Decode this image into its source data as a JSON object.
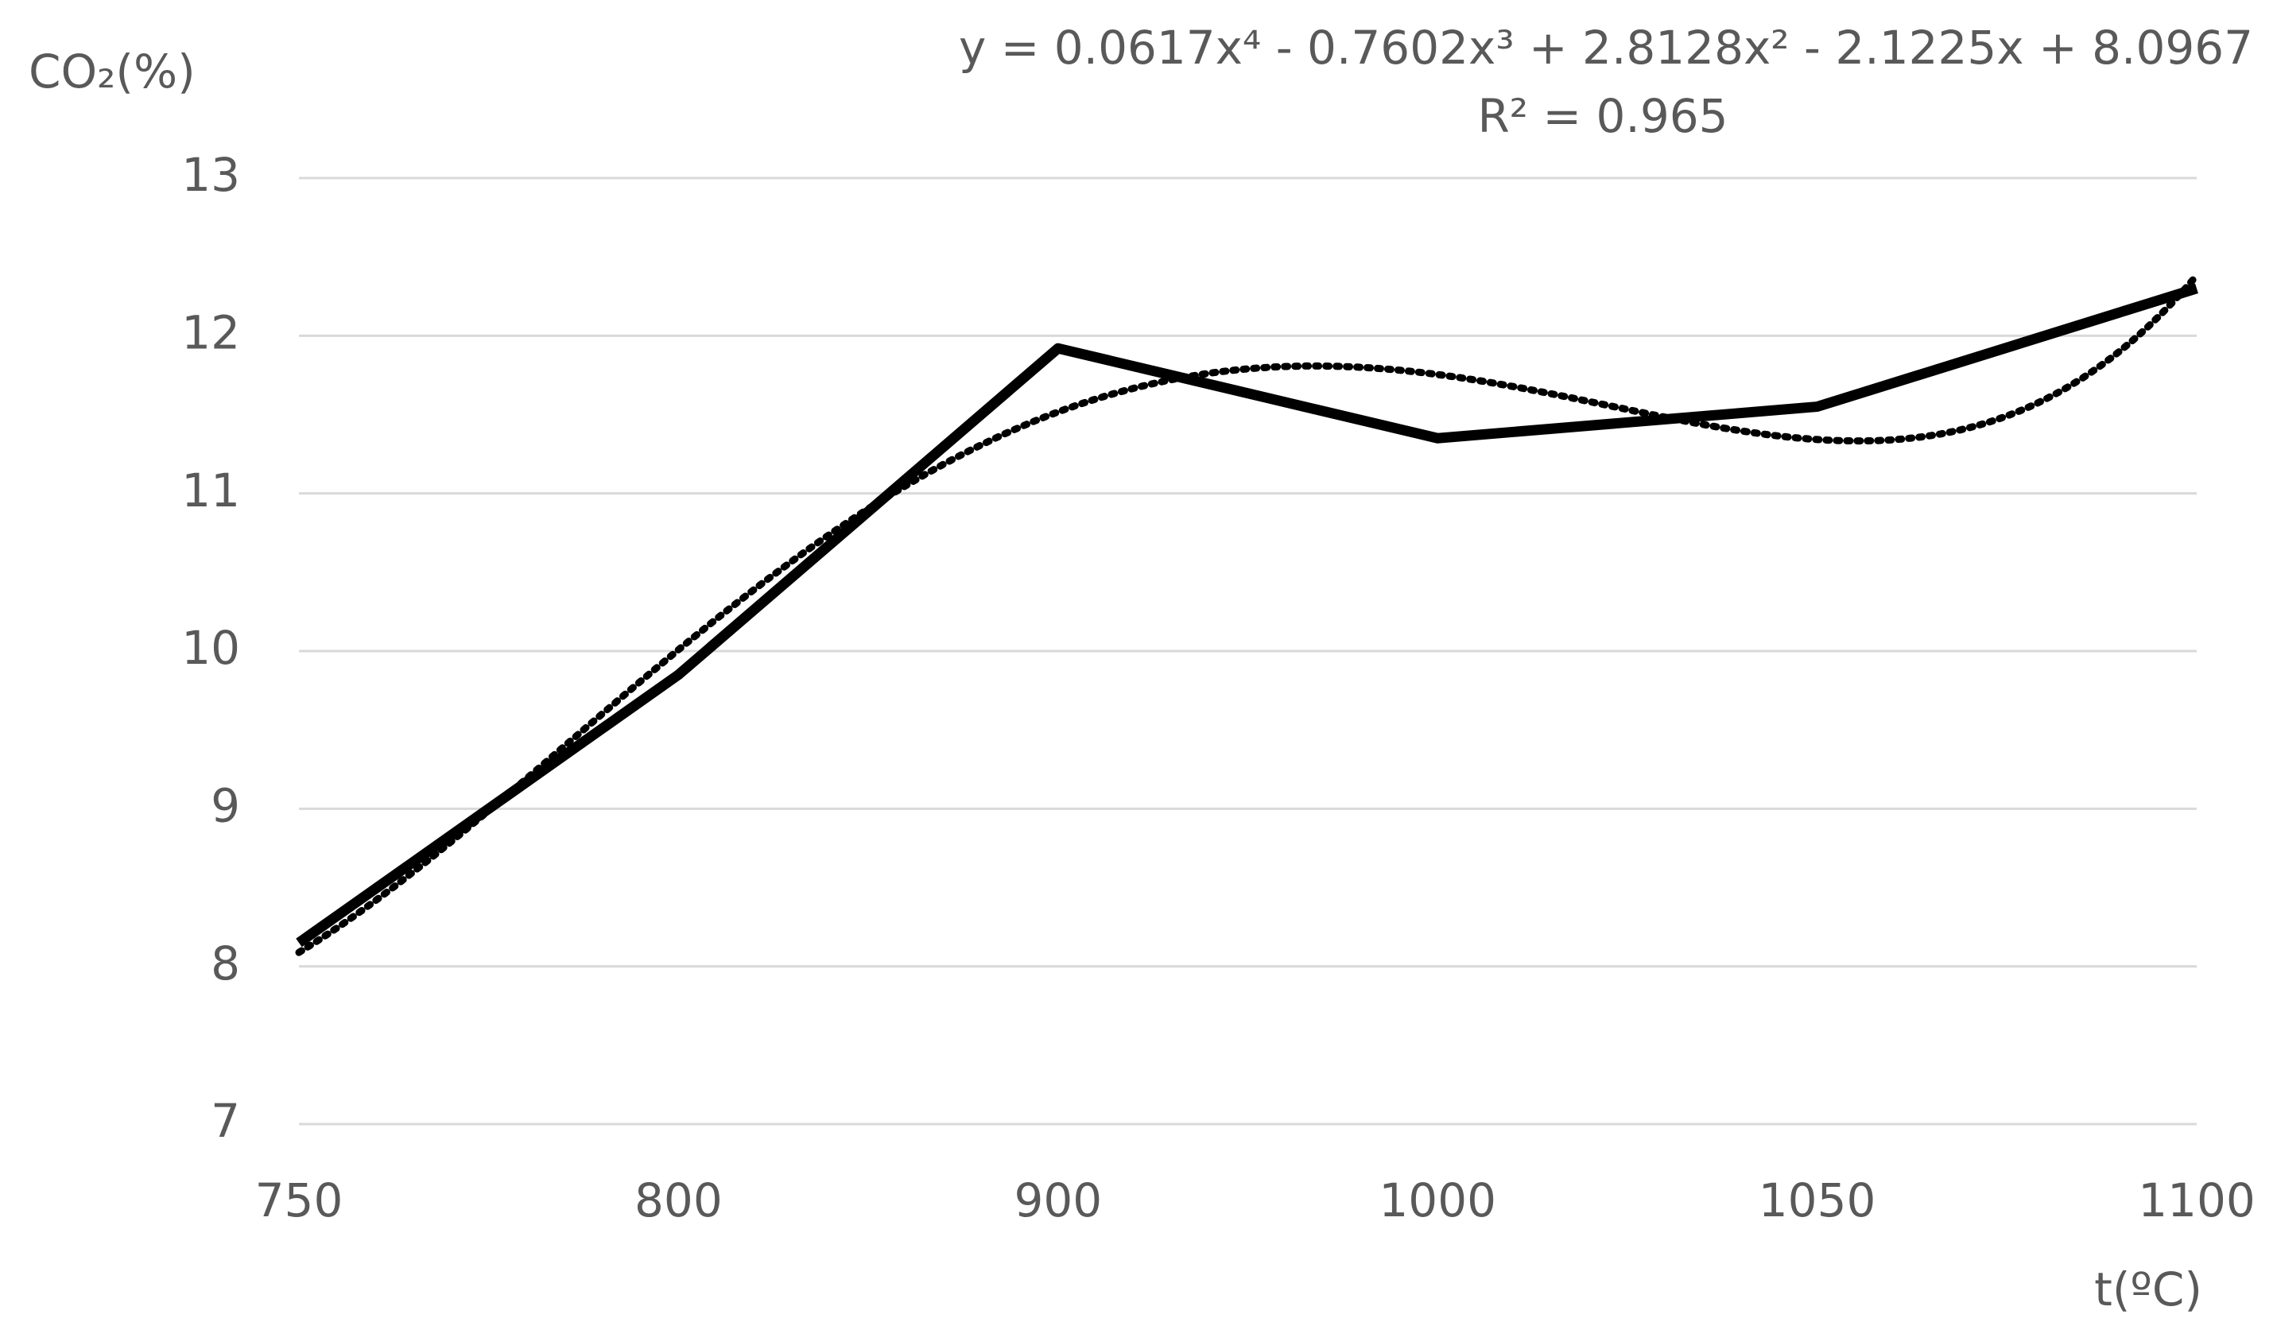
{
  "chart_data": {
    "type": "line",
    "y_label": "CO₂(%)",
    "x_label": "t(ºC)",
    "categories": [
      "750",
      "800",
      "900",
      "1000",
      "1050",
      "1100"
    ],
    "series": [
      {
        "color": "#000000",
        "values": [
          8.15,
          9.85,
          11.92,
          11.35,
          11.55,
          12.3
        ]
      }
    ],
    "trendline": {
      "type": "polynomial",
      "style": "dotted",
      "color": "#000000",
      "coefficients": [
        0.0617,
        -0.7602,
        2.8128,
        -2.1225,
        8.0967
      ],
      "equation": "y = 0.0617x⁴ - 0.7602x³ + 2.8128x² - 2.1225x + 8.0967",
      "r_squared": "R² = 0.965"
    },
    "ylim": [
      7,
      13
    ],
    "yticks": [
      7,
      8,
      9,
      10,
      11,
      12,
      13
    ],
    "grid": true
  }
}
